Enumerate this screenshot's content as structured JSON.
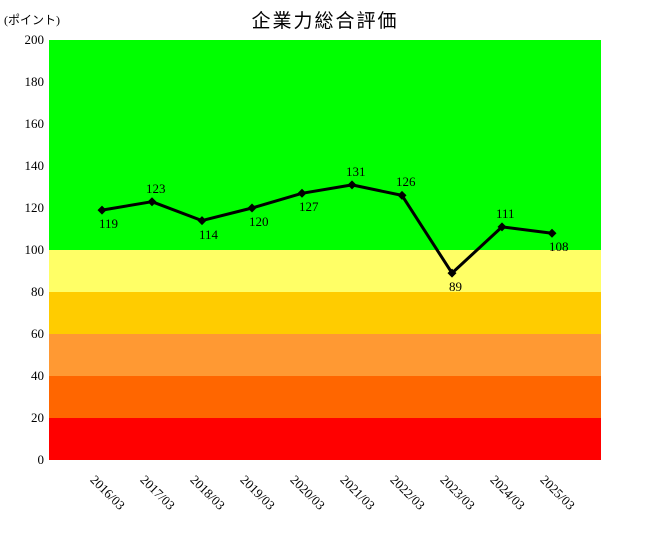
{
  "title": "企業力総合評価",
  "unit_label": "(ポイント)",
  "chart_data": {
    "type": "line",
    "title": "企業力総合評価",
    "ylabel": "(ポイント)",
    "x": [
      "2016/03",
      "2017/03",
      "2018/03",
      "2019/03",
      "2020/03",
      "2021/03",
      "2022/03",
      "2023/03",
      "2024/03",
      "2025/03"
    ],
    "values": [
      119,
      123,
      114,
      120,
      127,
      131,
      126,
      89,
      111,
      108
    ],
    "label_positions": [
      "below",
      "above",
      "below",
      "below",
      "below",
      "above",
      "above",
      "below",
      "above",
      "below"
    ],
    "ylim": [
      0,
      200
    ],
    "yticks": [
      0,
      20,
      40,
      60,
      80,
      100,
      120,
      140,
      160,
      180,
      200
    ],
    "grid": false,
    "legend": "none",
    "line_color": "#000000",
    "marker": "diamond",
    "background_bands": [
      {
        "from": 100,
        "to": 200,
        "color": "#00ff00"
      },
      {
        "from": 80,
        "to": 100,
        "color": "#ffff66"
      },
      {
        "from": 60,
        "to": 80,
        "color": "#ffcc00"
      },
      {
        "from": 40,
        "to": 60,
        "color": "#ff9933"
      },
      {
        "from": 20,
        "to": 40,
        "color": "#ff6600"
      },
      {
        "from": 0,
        "to": 20,
        "color": "#ff0000"
      }
    ]
  }
}
